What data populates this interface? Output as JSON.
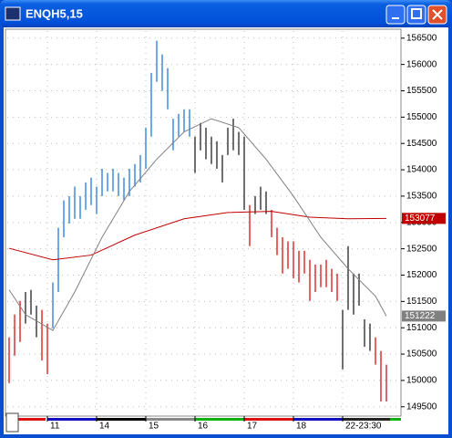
{
  "chart_data": {
    "type": "hl-bars",
    "title": "ENQH5,15",
    "xlim": [
      -1,
      70
    ],
    "xticks": [
      {
        "value": 7,
        "label": "11"
      },
      {
        "value": 16,
        "label": "14"
      },
      {
        "value": 25,
        "label": "15"
      },
      {
        "value": 34,
        "label": "16"
      },
      {
        "value": 43,
        "label": "17"
      },
      {
        "value": 52,
        "label": "18"
      },
      {
        "value": 61,
        "label": "22-23:30"
      }
    ],
    "ylim": [
      149340,
      156670
    ],
    "yticks": [
      156500,
      156000,
      155500,
      155000,
      154500,
      154000,
      153500,
      153000,
      152500,
      152000,
      151500,
      151000,
      150500,
      150000,
      149500
    ],
    "grid": true,
    "series": [
      {
        "type": "bars",
        "color": "#3d8be0",
        "x": [
          8,
          9,
          10,
          11,
          12,
          13,
          14,
          15,
          16,
          17,
          18,
          19,
          20,
          21,
          22,
          23,
          24,
          25,
          26,
          27,
          28,
          29,
          30,
          31,
          32,
          33
        ],
        "high": [
          151860,
          152900,
          153420,
          153500,
          153680,
          153500,
          153760,
          153850,
          153680,
          154020,
          153940,
          154020,
          153940,
          153850,
          154020,
          154110,
          154280,
          154800,
          155840,
          156450,
          156190,
          155930,
          154970,
          155060,
          155150,
          155150
        ],
        "low": [
          150990,
          151680,
          152720,
          152980,
          153070,
          153070,
          153240,
          153330,
          153160,
          153500,
          153590,
          153590,
          153500,
          153420,
          153500,
          153680,
          153760,
          154020,
          154630,
          155670,
          155500,
          155150,
          154370,
          154630,
          154720,
          154630
        ]
      },
      {
        "type": "bars",
        "color": "#404040",
        "x": [
          3,
          4,
          5,
          34,
          35,
          36,
          37,
          38,
          39,
          40,
          41,
          42,
          43,
          45,
          46,
          47,
          61,
          62,
          63,
          64,
          65,
          66
        ],
        "high": [
          151680,
          151720,
          151420,
          154630,
          154890,
          154800,
          154630,
          154540,
          154280,
          154800,
          154970,
          154720,
          154630,
          153500,
          153680,
          153590,
          151340,
          152550,
          152030,
          152030,
          151160,
          151080
        ],
        "low": [
          151080,
          151250,
          150820,
          153940,
          154370,
          154200,
          154110,
          154020,
          153760,
          154280,
          154370,
          154280,
          153240,
          153160,
          153240,
          153160,
          150210,
          151340,
          151250,
          151420,
          150640,
          150560
        ]
      },
      {
        "type": "bars",
        "color": "#e03030",
        "x": [
          0,
          1,
          2,
          6,
          7,
          44,
          48,
          49,
          50,
          51,
          52,
          53,
          54,
          55,
          56,
          57,
          58,
          59,
          60,
          67,
          68,
          69
        ],
        "high": [
          150820,
          151250,
          151510,
          151340,
          151080,
          153330,
          153240,
          152900,
          152720,
          152640,
          152640,
          152460,
          152460,
          152290,
          152200,
          152200,
          152290,
          152120,
          152030,
          150820,
          150560,
          150300
        ],
        "low": [
          149950,
          150470,
          150730,
          150380,
          150120,
          152550,
          152720,
          152380,
          152030,
          152120,
          151940,
          151860,
          152030,
          151510,
          151680,
          151770,
          151770,
          151680,
          151510,
          150300,
          149600,
          149600
        ]
      },
      {
        "type": "line",
        "color": "#c00000",
        "x": [
          0,
          8,
          15,
          23,
          32,
          40,
          48,
          55,
          62,
          69
        ],
        "values": [
          152510,
          152290,
          152380,
          152760,
          153070,
          153190,
          153210,
          153100,
          153070,
          153077
        ]
      },
      {
        "type": "line",
        "color": "#808080",
        "x": [
          0,
          3,
          8,
          12,
          17,
          22,
          27,
          32,
          37,
          42,
          47,
          52,
          57,
          62,
          67,
          69
        ],
        "values": [
          151720,
          151250,
          150950,
          151680,
          152720,
          153590,
          154200,
          154720,
          154970,
          154800,
          154200,
          153500,
          152720,
          152120,
          151600,
          151222
        ]
      }
    ]
  }
}
